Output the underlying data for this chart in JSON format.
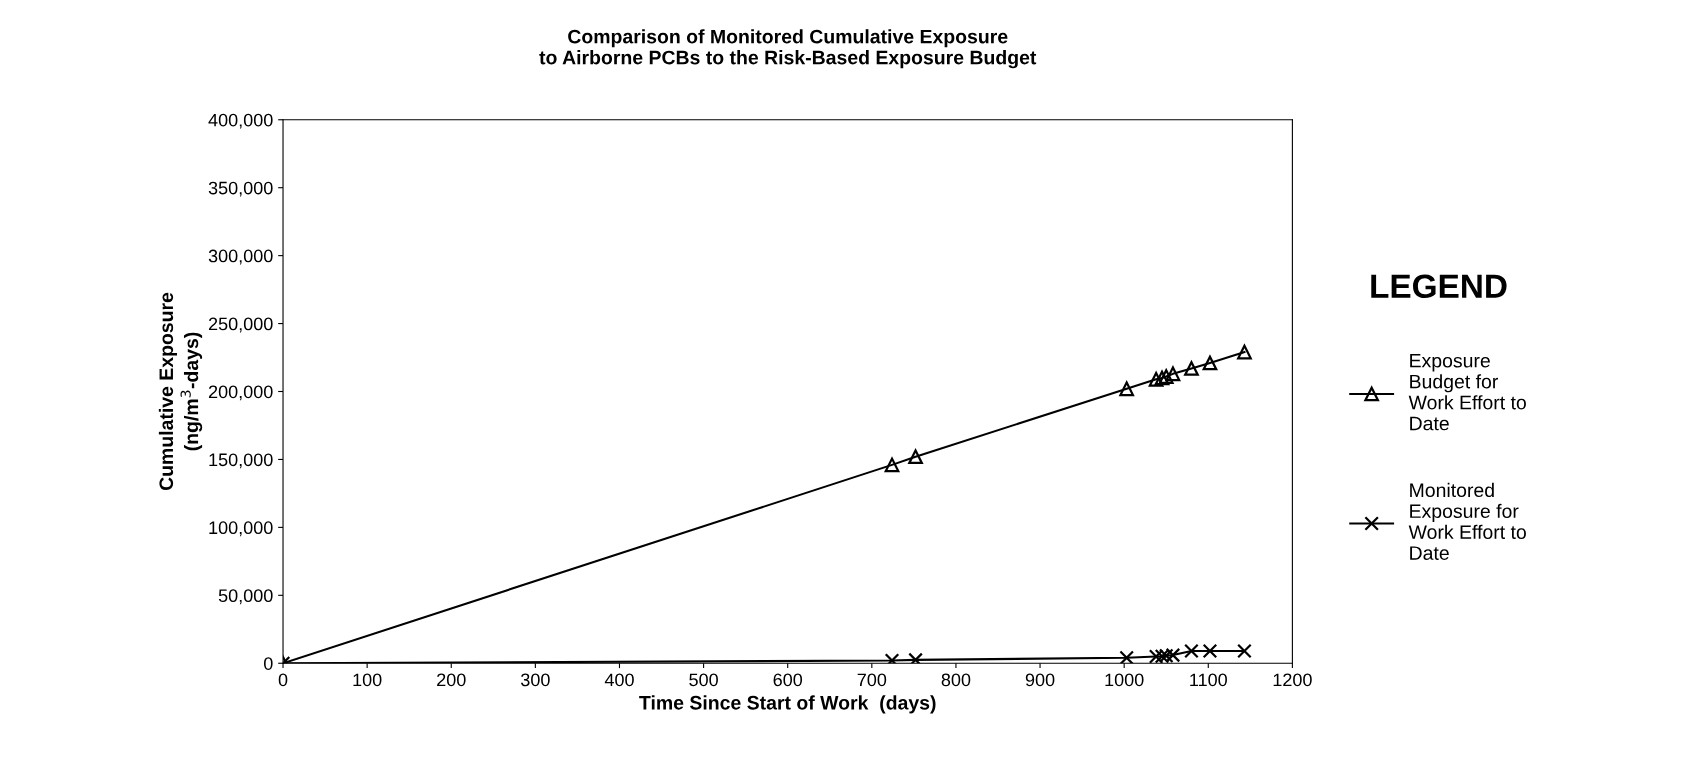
{
  "chart_data": {
    "type": "line",
    "title": "Comparison of Monitored Cumulative Exposure\nto Airborne PCBs to the Risk-Based Exposure Budget",
    "xlabel": "Time Since Start of Work  (days)",
    "ylabel": "Cumulative Exposure\n(ng/m$^{3}$-days)",
    "legend_title": "LEGEND",
    "legend": "right",
    "grid": false,
    "x": [
      0,
      724,
      752,
      1003,
      1038,
      1045,
      1050,
      1058,
      1080,
      1102,
      1143
    ],
    "series": [
      {
        "name": "Exposure\nBudget for\nWork Effort to\nDate",
        "color": "#000000",
        "marker": "triangle",
        "values": [
          0,
          146000,
          152000,
          202000,
          209000,
          210000,
          211000,
          213000,
          217000,
          221000,
          229000
        ]
      },
      {
        "name": "Monitored\nExposure for\nWork Effort to\nDate",
        "color": "#000000",
        "marker": "cross",
        "values": [
          0,
          2000,
          2500,
          4000,
          5000,
          5200,
          5500,
          6000,
          9000,
          9000,
          9000
        ]
      }
    ],
    "xlim": [
      0,
      1200
    ],
    "xticks": [
      0,
      100,
      200,
      300,
      400,
      500,
      600,
      700,
      800,
      900,
      1000,
      1100,
      1200
    ],
    "ylim": [
      0,
      400000
    ],
    "yticks": [
      {
        "value": 0,
        "label": "0"
      },
      {
        "value": 50000,
        "label": "50,000"
      },
      {
        "value": 100000,
        "label": "100,000"
      },
      {
        "value": 150000,
        "label": "150,000"
      },
      {
        "value": 200000,
        "label": "200,000"
      },
      {
        "value": 250000,
        "label": "250,000"
      },
      {
        "value": 300000,
        "label": "300,000"
      },
      {
        "value": 350000,
        "label": "350,000"
      },
      {
        "value": 400000,
        "label": "400,000"
      }
    ]
  }
}
